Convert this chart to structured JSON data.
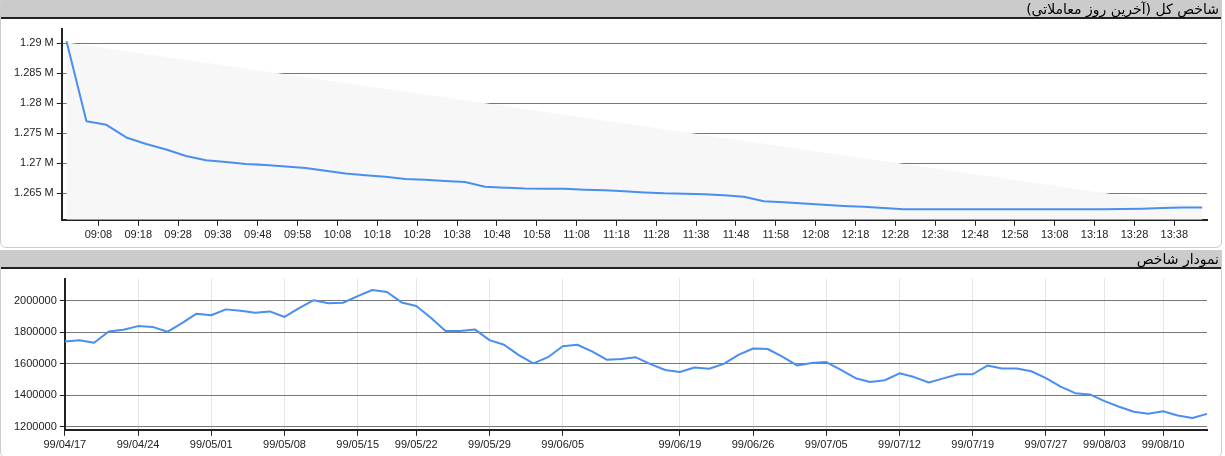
{
  "chart_data": [
    {
      "type": "line",
      "title": "شاخص کل (آخرین روز معاملاتی)",
      "grid": "y",
      "legend": false,
      "marker": "none",
      "x": [
        9,
        9.0833,
        9.1667,
        9.25,
        9.3333,
        9.4167,
        9.5,
        9.5833,
        9.6667,
        9.75,
        9.8333,
        9.9167,
        10,
        10.0833,
        10.1667,
        10.25,
        10.3333,
        10.4167,
        10.5,
        10.5833,
        10.6667,
        10.75,
        10.8333,
        10.9167,
        11,
        11.0833,
        11.1667,
        11.25,
        11.3333,
        11.4167,
        11.5,
        11.5833,
        11.6667,
        11.75,
        11.8333,
        11.9167,
        12,
        12.0833,
        12.1667,
        12.25,
        12.3333,
        12.4167,
        12.5,
        12.5833,
        12.6667,
        12.75,
        12.8333,
        12.9167,
        13,
        13.0833,
        13.1667,
        13.25,
        13.3333,
        13.4167,
        13.5,
        13.5833,
        13.6667,
        13.75
      ],
      "xlim": [
        8.98,
        13.77
      ],
      "xticks": [
        {
          "value": 9.1333,
          "label": "09:08"
        },
        {
          "value": 9.3,
          "label": "09:18"
        },
        {
          "value": 9.4667,
          "label": "09:28"
        },
        {
          "value": 9.6333,
          "label": "09:38"
        },
        {
          "value": 9.8,
          "label": "09:48"
        },
        {
          "value": 9.9667,
          "label": "09:58"
        },
        {
          "value": 10.1333,
          "label": "10:08"
        },
        {
          "value": 10.3,
          "label": "10:18"
        },
        {
          "value": 10.4667,
          "label": "10:28"
        },
        {
          "value": 10.6333,
          "label": "10:38"
        },
        {
          "value": 10.8,
          "label": "10:48"
        },
        {
          "value": 10.9667,
          "label": "10:58"
        },
        {
          "value": 11.1333,
          "label": "11:08"
        },
        {
          "value": 11.3,
          "label": "11:18"
        },
        {
          "value": 11.4667,
          "label": "11:28"
        },
        {
          "value": 11.6333,
          "label": "11:38"
        },
        {
          "value": 11.8,
          "label": "11:48"
        },
        {
          "value": 11.9667,
          "label": "11:58"
        },
        {
          "value": 12.1333,
          "label": "12:08"
        },
        {
          "value": 12.3,
          "label": "12:18"
        },
        {
          "value": 12.4667,
          "label": "12:28"
        },
        {
          "value": 12.6333,
          "label": "12:38"
        },
        {
          "value": 12.8,
          "label": "12:48"
        },
        {
          "value": 12.9667,
          "label": "12:58"
        },
        {
          "value": 13.1333,
          "label": "13:08"
        },
        {
          "value": 13.3,
          "label": "13:18"
        },
        {
          "value": 13.4667,
          "label": "13:28"
        },
        {
          "value": 13.6333,
          "label": "13:38"
        }
      ],
      "ylim": [
        1260600,
        1292400
      ],
      "yticks": [
        {
          "value": 1265000,
          "label": "1.265 M"
        },
        {
          "value": 1270000,
          "label": "1.27 M"
        },
        {
          "value": 1275000,
          "label": "1.275 M"
        },
        {
          "value": 1280000,
          "label": "1.28 M"
        },
        {
          "value": 1285000,
          "label": "1.285 M"
        },
        {
          "value": 1290000,
          "label": "1.29 M"
        }
      ],
      "series": [
        {
          "color": "#4a8ff0",
          "values": [
            1290300,
            1277000,
            1276400,
            1274300,
            1273200,
            1272300,
            1271200,
            1270500,
            1270200,
            1269900,
            1269700,
            1269450,
            1269200,
            1268750,
            1268300,
            1268000,
            1267750,
            1267400,
            1267250,
            1267050,
            1266900,
            1266100,
            1265950,
            1265800,
            1265750,
            1265750,
            1265600,
            1265500,
            1265350,
            1265150,
            1265000,
            1264950,
            1264850,
            1264700,
            1264450,
            1263700,
            1263500,
            1263300,
            1263100,
            1262900,
            1262750,
            1262550,
            1262350,
            1262350,
            1262350,
            1262350,
            1262350,
            1262350,
            1262350,
            1262350,
            1262350,
            1262350,
            1262350,
            1262400,
            1262450,
            1262550,
            1262650,
            1262650
          ]
        },
        {
          "type": "area",
          "color": "#f7f7f7",
          "x": [
            9,
            13.75
          ],
          "values": [
            1290000,
            1262600
          ]
        }
      ]
    },
    {
      "type": "line",
      "title": "نمودار شاخص",
      "grid": true,
      "legend": false,
      "marker": "none",
      "categories": [
        "99/04/17",
        null,
        null,
        null,
        null,
        "99/04/24",
        null,
        null,
        null,
        null,
        "99/05/01",
        null,
        null,
        null,
        null,
        "99/05/08",
        null,
        null,
        null,
        null,
        "99/05/15",
        null,
        null,
        null,
        "99/05/22",
        null,
        null,
        null,
        null,
        "99/05/29",
        null,
        null,
        null,
        null,
        "99/06/05",
        null,
        null,
        null,
        null,
        null,
        null,
        null,
        "99/06/19",
        null,
        null,
        null,
        null,
        "99/06/26",
        null,
        null,
        null,
        null,
        "99/07/05",
        null,
        null,
        null,
        null,
        "99/07/12",
        null,
        null,
        null,
        null,
        "99/07/19",
        null,
        null,
        null,
        null,
        "99/07/27",
        null,
        null,
        null,
        "99/08/03",
        null,
        null,
        null,
        "99/08/10",
        null,
        null,
        null
      ],
      "ylim": [
        1182000,
        2140000
      ],
      "yticks": [
        1200000,
        1400000,
        1600000,
        1800000,
        2000000
      ],
      "series": [
        {
          "color": "#4a8ff0",
          "values": [
            1742000,
            1750000,
            1734000,
            1805000,
            1816000,
            1839000,
            1834000,
            1803000,
            1858000,
            1918000,
            1908000,
            1945000,
            1937000,
            1924000,
            1932000,
            1897000,
            1953000,
            2003000,
            1984000,
            1987000,
            2029000,
            2068000,
            2055000,
            1989000,
            1966000,
            1892000,
            1808000,
            1808000,
            1818000,
            1750000,
            1721000,
            1655000,
            1603000,
            1642000,
            1711000,
            1721000,
            1679000,
            1626000,
            1631000,
            1641000,
            1598000,
            1561000,
            1548000,
            1577000,
            1569000,
            1600000,
            1657000,
            1697000,
            1694000,
            1645000,
            1590000,
            1605000,
            1611000,
            1561000,
            1509000,
            1485000,
            1496000,
            1540000,
            1516000,
            1482000,
            1508000,
            1534000,
            1534000,
            1589000,
            1571000,
            1571000,
            1553000,
            1509000,
            1456000,
            1414000,
            1406000,
            1364000,
            1328000,
            1296000,
            1283000,
            1299000,
            1273000,
            1257000,
            1283000
          ]
        }
      ]
    }
  ]
}
